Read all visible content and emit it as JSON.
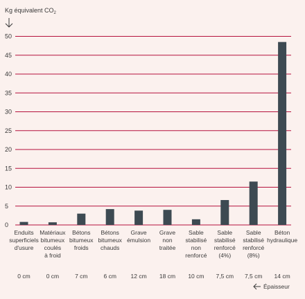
{
  "chart_data": {
    "type": "bar",
    "ylabel_prefix": "Kg équivalent CO",
    "ylabel_sub": "2",
    "ylim": [
      0,
      50
    ],
    "yticks": [
      0,
      5,
      10,
      15,
      20,
      25,
      30,
      35,
      40,
      45,
      50
    ],
    "grid": true,
    "categories": [
      [
        "Enduits",
        "superficiels",
        "d'usure"
      ],
      [
        "Matériaux",
        "bitumeux",
        "coulés",
        "à froid"
      ],
      [
        "Bétons",
        "bitumeux",
        "froids"
      ],
      [
        "Bétons",
        "bitumeux",
        "chauds"
      ],
      [
        "Grave",
        "émulsion"
      ],
      [
        "Grave",
        "non",
        "traitée"
      ],
      [
        "Sable",
        "stabilisé",
        "non",
        "renforcé"
      ],
      [
        "Sable",
        "stabilisé",
        "renforcé",
        "(4%)"
      ],
      [
        "Sable",
        "stabilisé",
        "renforcé",
        "(8%)"
      ],
      [
        "Béton",
        "hydraulique"
      ]
    ],
    "values": [
      0.8,
      0.7,
      3.0,
      4.2,
      3.8,
      4.0,
      1.5,
      6.6,
      11.5,
      48.5
    ],
    "thickness": [
      "0 cm",
      "0 cm",
      "7 cm",
      "6 cm",
      "12 cm",
      "18 cm",
      "10 cm",
      "7,5 cm",
      "7,5 cm",
      "14 cm"
    ],
    "thickness_label": "Épaisseur",
    "colors": {
      "bar": "#3d4a52",
      "grid": "#b5103c",
      "background": "#fbf1ee"
    }
  }
}
